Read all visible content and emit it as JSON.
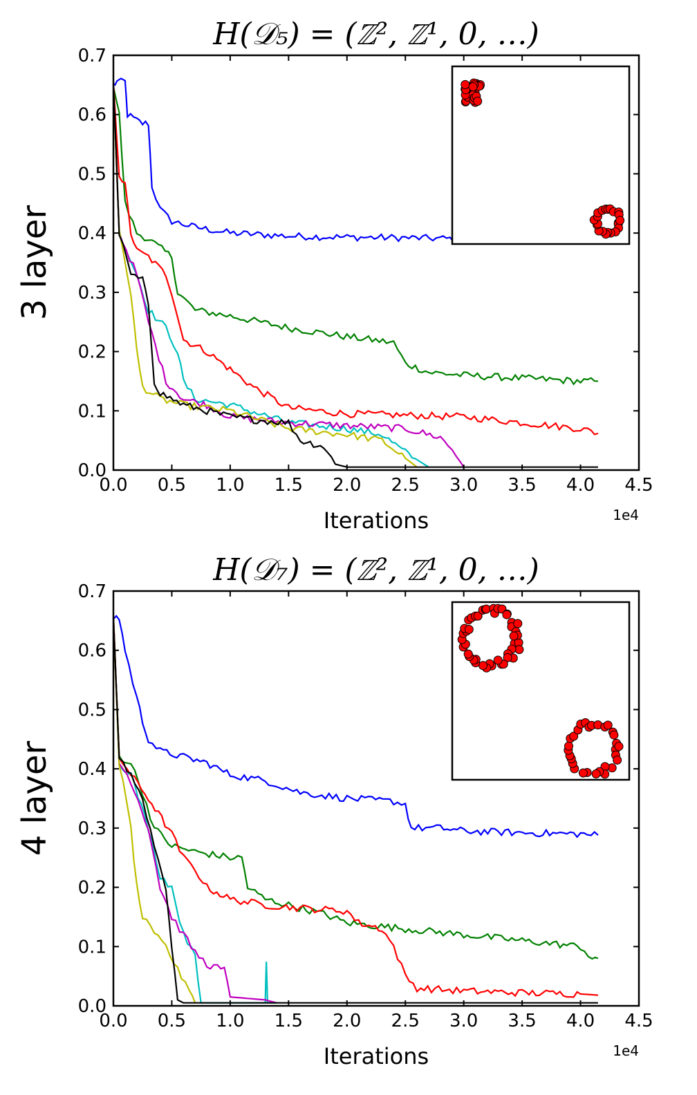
{
  "chart_data": [
    {
      "type": "line",
      "title": "H(𝒟₅) = (ℤ², ℤ¹, 0, …)",
      "ylabel": "3 layer",
      "xlabel": "Iterations",
      "x_offset_label": "1e4",
      "xlim": [
        0,
        4.5
      ],
      "ylim": [
        0,
        0.7
      ],
      "xticks": [
        "0.0",
        "0.5",
        "1.0",
        "1.5",
        "2.0",
        "2.5",
        "3.0",
        "3.5",
        "4.0",
        "4.5"
      ],
      "yticks": [
        "0.0",
        "0.1",
        "0.2",
        "0.3",
        "0.4",
        "0.5",
        "0.6",
        "0.7"
      ],
      "grid": false,
      "series": [
        {
          "color": "#0000ff",
          "points": [
            [
              0,
              0.65
            ],
            [
              0.03,
              0.655
            ],
            [
              0.1,
              0.655
            ],
            [
              0.12,
              0.6
            ],
            [
              0.2,
              0.59
            ],
            [
              0.25,
              0.585
            ],
            [
              0.3,
              0.585
            ],
            [
              0.33,
              0.48
            ],
            [
              0.4,
              0.44
            ],
            [
              0.5,
              0.42
            ],
            [
              0.7,
              0.41
            ],
            [
              1.0,
              0.4
            ],
            [
              1.5,
              0.395
            ],
            [
              2.0,
              0.393
            ],
            [
              2.5,
              0.392
            ],
            [
              3.0,
              0.39
            ]
          ]
        },
        {
          "color": "#008000",
          "points": [
            [
              0,
              0.65
            ],
            [
              0.05,
              0.6
            ],
            [
              0.1,
              0.45
            ],
            [
              0.2,
              0.4
            ],
            [
              0.3,
              0.39
            ],
            [
              0.5,
              0.36
            ],
            [
              0.55,
              0.3
            ],
            [
              0.7,
              0.27
            ],
            [
              1.0,
              0.26
            ],
            [
              1.5,
              0.24
            ],
            [
              2.0,
              0.225
            ],
            [
              2.4,
              0.215
            ],
            [
              2.5,
              0.18
            ],
            [
              2.7,
              0.165
            ],
            [
              3.0,
              0.16
            ],
            [
              3.5,
              0.155
            ],
            [
              4.0,
              0.15
            ],
            [
              4.15,
              0.15
            ]
          ]
        },
        {
          "color": "#ff0000",
          "points": [
            [
              0,
              0.65
            ],
            [
              0.05,
              0.5
            ],
            [
              0.1,
              0.48
            ],
            [
              0.15,
              0.4
            ],
            [
              0.2,
              0.37
            ],
            [
              0.3,
              0.36
            ],
            [
              0.45,
              0.33
            ],
            [
              0.5,
              0.3
            ],
            [
              0.6,
              0.22
            ],
            [
              0.8,
              0.2
            ],
            [
              1.0,
              0.17
            ],
            [
              1.2,
              0.14
            ],
            [
              1.5,
              0.105
            ],
            [
              2.0,
              0.095
            ],
            [
              3.0,
              0.09
            ],
            [
              4.0,
              0.07
            ],
            [
              4.15,
              0.062
            ]
          ]
        },
        {
          "color": "#00bfbf",
          "points": [
            [
              0,
              0.65
            ],
            [
              0.05,
              0.4
            ],
            [
              0.2,
              0.33
            ],
            [
              0.3,
              0.27
            ],
            [
              0.45,
              0.24
            ],
            [
              0.55,
              0.2
            ],
            [
              0.6,
              0.15
            ],
            [
              0.7,
              0.12
            ],
            [
              1.0,
              0.11
            ],
            [
              1.5,
              0.08
            ],
            [
              2.0,
              0.07
            ],
            [
              2.3,
              0.06
            ],
            [
              2.5,
              0.03
            ],
            [
              2.7,
              0.005
            ]
          ]
        },
        {
          "color": "#bf00bf",
          "points": [
            [
              0,
              0.65
            ],
            [
              0.05,
              0.4
            ],
            [
              0.2,
              0.33
            ],
            [
              0.3,
              0.25
            ],
            [
              0.45,
              0.15
            ],
            [
              0.6,
              0.12
            ],
            [
              0.8,
              0.11
            ],
            [
              1.0,
              0.09
            ],
            [
              1.5,
              0.08
            ],
            [
              2.0,
              0.075
            ],
            [
              2.5,
              0.07
            ],
            [
              2.8,
              0.055
            ],
            [
              2.9,
              0.035
            ],
            [
              3.0,
              0.005
            ]
          ]
        },
        {
          "color": "#bfbf00",
          "points": [
            [
              0,
              0.65
            ],
            [
              0.05,
              0.4
            ],
            [
              0.15,
              0.3
            ],
            [
              0.2,
              0.2
            ],
            [
              0.25,
              0.14
            ],
            [
              0.4,
              0.12
            ],
            [
              0.6,
              0.11
            ],
            [
              1.0,
              0.1
            ],
            [
              1.5,
              0.07
            ],
            [
              2.0,
              0.06
            ],
            [
              2.3,
              0.05
            ],
            [
              2.5,
              0.02
            ],
            [
              2.6,
              0.005
            ]
          ]
        },
        {
          "color": "#000000",
          "points": [
            [
              0,
              0.655
            ],
            [
              0.05,
              0.4
            ],
            [
              0.15,
              0.33
            ],
            [
              0.25,
              0.32
            ],
            [
              0.3,
              0.28
            ],
            [
              0.35,
              0.15
            ],
            [
              0.4,
              0.13
            ],
            [
              0.6,
              0.11
            ],
            [
              0.8,
              0.1
            ],
            [
              1.0,
              0.09
            ],
            [
              1.2,
              0.085
            ],
            [
              1.5,
              0.08
            ],
            [
              1.6,
              0.05
            ],
            [
              1.8,
              0.04
            ],
            [
              1.9,
              0.01
            ],
            [
              2.0,
              0.005
            ],
            [
              4.15,
              0.005
            ]
          ]
        }
      ],
      "inset": {
        "marker_color": "#ff0000",
        "clusters": [
          {
            "shape": "blob",
            "cx": 0.12,
            "cy": 0.15,
            "rx": 0.08,
            "ry": 0.1,
            "n": 30
          },
          {
            "shape": "ring",
            "cx": 0.88,
            "cy": 0.87,
            "r": 0.07,
            "n": 22
          }
        ]
      }
    },
    {
      "type": "line",
      "title": "H(𝒟₇) = (ℤ², ℤ¹, 0, …)",
      "ylabel": "4 layer",
      "xlabel": "Iterations",
      "x_offset_label": "1e4",
      "xlim": [
        0,
        4.5
      ],
      "ylim": [
        0,
        0.7
      ],
      "xticks": [
        "0.0",
        "0.5",
        "1.0",
        "1.5",
        "2.0",
        "2.5",
        "3.0",
        "3.5",
        "4.0",
        "4.5"
      ],
      "yticks": [
        "0.0",
        "0.1",
        "0.2",
        "0.3",
        "0.4",
        "0.5",
        "0.6",
        "0.7"
      ],
      "grid": false,
      "series": [
        {
          "color": "#0000ff",
          "points": [
            [
              0,
              0.655
            ],
            [
              0.05,
              0.655
            ],
            [
              0.1,
              0.6
            ],
            [
              0.2,
              0.52
            ],
            [
              0.25,
              0.48
            ],
            [
              0.3,
              0.45
            ],
            [
              0.4,
              0.43
            ],
            [
              0.6,
              0.42
            ],
            [
              0.8,
              0.41
            ],
            [
              1.0,
              0.39
            ],
            [
              1.3,
              0.38
            ],
            [
              1.6,
              0.36
            ],
            [
              2.0,
              0.35
            ],
            [
              2.4,
              0.345
            ],
            [
              2.5,
              0.34
            ],
            [
              2.55,
              0.3
            ],
            [
              2.8,
              0.3
            ],
            [
              3.0,
              0.295
            ],
            [
              3.5,
              0.292
            ],
            [
              4.0,
              0.29
            ],
            [
              4.15,
              0.288
            ]
          ]
        },
        {
          "color": "#008000",
          "points": [
            [
              0,
              0.655
            ],
            [
              0.05,
              0.42
            ],
            [
              0.15,
              0.41
            ],
            [
              0.25,
              0.36
            ],
            [
              0.35,
              0.3
            ],
            [
              0.5,
              0.27
            ],
            [
              0.7,
              0.26
            ],
            [
              1.0,
              0.25
            ],
            [
              1.1,
              0.25
            ],
            [
              1.15,
              0.2
            ],
            [
              1.3,
              0.18
            ],
            [
              1.5,
              0.17
            ],
            [
              1.8,
              0.155
            ],
            [
              2.0,
              0.14
            ],
            [
              2.5,
              0.13
            ],
            [
              3.0,
              0.12
            ],
            [
              3.5,
              0.11
            ],
            [
              4.0,
              0.1
            ],
            [
              4.1,
              0.08
            ],
            [
              4.15,
              0.08
            ]
          ]
        },
        {
          "color": "#ff0000",
          "points": [
            [
              0,
              0.655
            ],
            [
              0.05,
              0.42
            ],
            [
              0.15,
              0.39
            ],
            [
              0.3,
              0.35
            ],
            [
              0.5,
              0.29
            ],
            [
              0.6,
              0.25
            ],
            [
              0.7,
              0.23
            ],
            [
              0.8,
              0.2
            ],
            [
              1.0,
              0.18
            ],
            [
              1.3,
              0.17
            ],
            [
              1.6,
              0.165
            ],
            [
              2.0,
              0.16
            ],
            [
              2.1,
              0.14
            ],
            [
              2.3,
              0.13
            ],
            [
              2.4,
              0.1
            ],
            [
              2.5,
              0.05
            ],
            [
              2.6,
              0.03
            ],
            [
              3.0,
              0.025
            ],
            [
              3.5,
              0.022
            ],
            [
              4.0,
              0.02
            ],
            [
              4.15,
              0.018
            ]
          ]
        },
        {
          "color": "#00bfbf",
          "points": [
            [
              0,
              0.655
            ],
            [
              0.05,
              0.41
            ],
            [
              0.15,
              0.39
            ],
            [
              0.3,
              0.3
            ],
            [
              0.4,
              0.22
            ],
            [
              0.5,
              0.2
            ],
            [
              0.6,
              0.12
            ],
            [
              0.7,
              0.09
            ],
            [
              0.75,
              0.005
            ],
            [
              1.3,
              0.005
            ],
            [
              1.31,
              0.07
            ],
            [
              1.32,
              0.005
            ],
            [
              1.4,
              0.005
            ]
          ]
        },
        {
          "color": "#bf00bf",
          "points": [
            [
              0,
              0.655
            ],
            [
              0.05,
              0.41
            ],
            [
              0.15,
              0.38
            ],
            [
              0.3,
              0.3
            ],
            [
              0.4,
              0.2
            ],
            [
              0.5,
              0.15
            ],
            [
              0.6,
              0.12
            ],
            [
              0.7,
              0.09
            ],
            [
              0.8,
              0.07
            ],
            [
              0.95,
              0.06
            ],
            [
              1.0,
              0.015
            ],
            [
              1.3,
              0.01
            ],
            [
              1.4,
              0.005
            ]
          ]
        },
        {
          "color": "#bfbf00",
          "points": [
            [
              0,
              0.655
            ],
            [
              0.05,
              0.41
            ],
            [
              0.15,
              0.3
            ],
            [
              0.2,
              0.2
            ],
            [
              0.25,
              0.15
            ],
            [
              0.35,
              0.12
            ],
            [
              0.45,
              0.1
            ],
            [
              0.55,
              0.06
            ],
            [
              0.65,
              0.03
            ],
            [
              0.7,
              0.005
            ]
          ]
        },
        {
          "color": "#000000",
          "points": [
            [
              0,
              0.655
            ],
            [
              0.05,
              0.42
            ],
            [
              0.15,
              0.39
            ],
            [
              0.25,
              0.35
            ],
            [
              0.35,
              0.27
            ],
            [
              0.45,
              0.2
            ],
            [
              0.5,
              0.1
            ],
            [
              0.55,
              0.01
            ],
            [
              0.6,
              0.005
            ],
            [
              4.15,
              0.005
            ]
          ]
        }
      ],
      "inset": {
        "marker_color": "#ff0000",
        "clusters": [
          {
            "shape": "ring",
            "cx": 0.22,
            "cy": 0.2,
            "r": 0.15,
            "n": 45
          },
          {
            "shape": "ring",
            "cx": 0.8,
            "cy": 0.82,
            "r": 0.14,
            "n": 30
          }
        ]
      }
    }
  ]
}
